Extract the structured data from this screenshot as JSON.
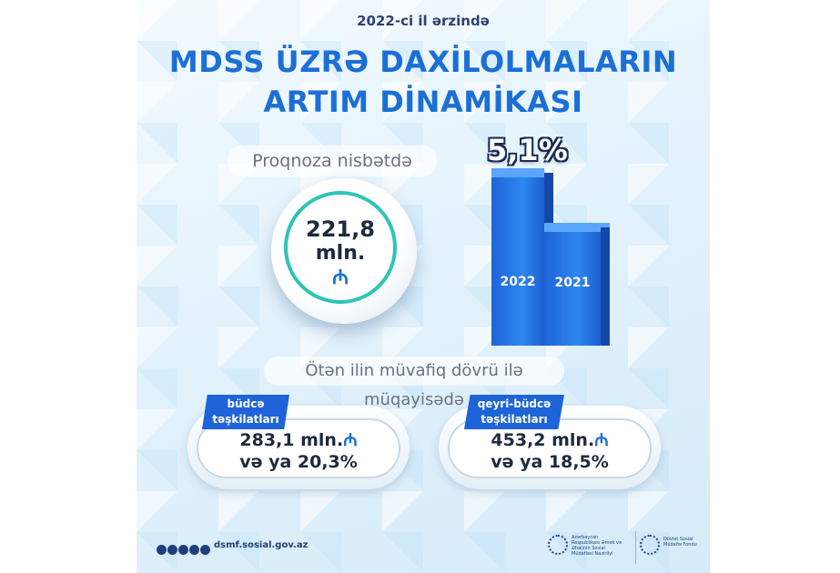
{
  "header": {
    "subtitle": "2022-ci il ərzində",
    "title_line1": "MDSS ÜZRƏ DAXİLOLMALARIN",
    "title_line2": "ARTIM DİNAMİKASI"
  },
  "forecast": {
    "label": "Proqnoza nisbətdə",
    "value": "221,8",
    "unit": "mln.",
    "currency_symbol": "₼"
  },
  "growth_chart": {
    "percent": "5,1%",
    "bars": [
      {
        "label": "2022",
        "relative_height": 1.0
      },
      {
        "label": "2021",
        "relative_height": 0.66
      }
    ],
    "bar_color": "#1e64d8"
  },
  "comparison": {
    "label": "Ötən ilin müvafiq dövrü ilə müqayisədə",
    "items": [
      {
        "tag_line1": "büdcə",
        "tag_line2": "təşkilatları",
        "value": "283,1 mln.",
        "currency": "₼",
        "percent": "və ya 20,3%"
      },
      {
        "tag_line1": "qeyri-büdcə",
        "tag_line2": "təşkilatları",
        "value": "453,2 mln.",
        "currency": "₼",
        "percent": "və ya 18,5%"
      }
    ]
  },
  "footer": {
    "url": "dsmf.sosial.gov.az",
    "social_icons": [
      "instagram-icon",
      "facebook-icon",
      "youtube-icon",
      "telegram-icon",
      "twitter-icon"
    ],
    "org1": "Azərbaycan Respublikası Əmək və Əhalinin Sosial Müdafiəsi Nazirliyi",
    "org2": "Dövlət Sosial Müdafiə Fondu"
  },
  "colors": {
    "accent": "#1b6fd6",
    "teal": "#2ec4b6",
    "navy": "#1f3f7a"
  }
}
